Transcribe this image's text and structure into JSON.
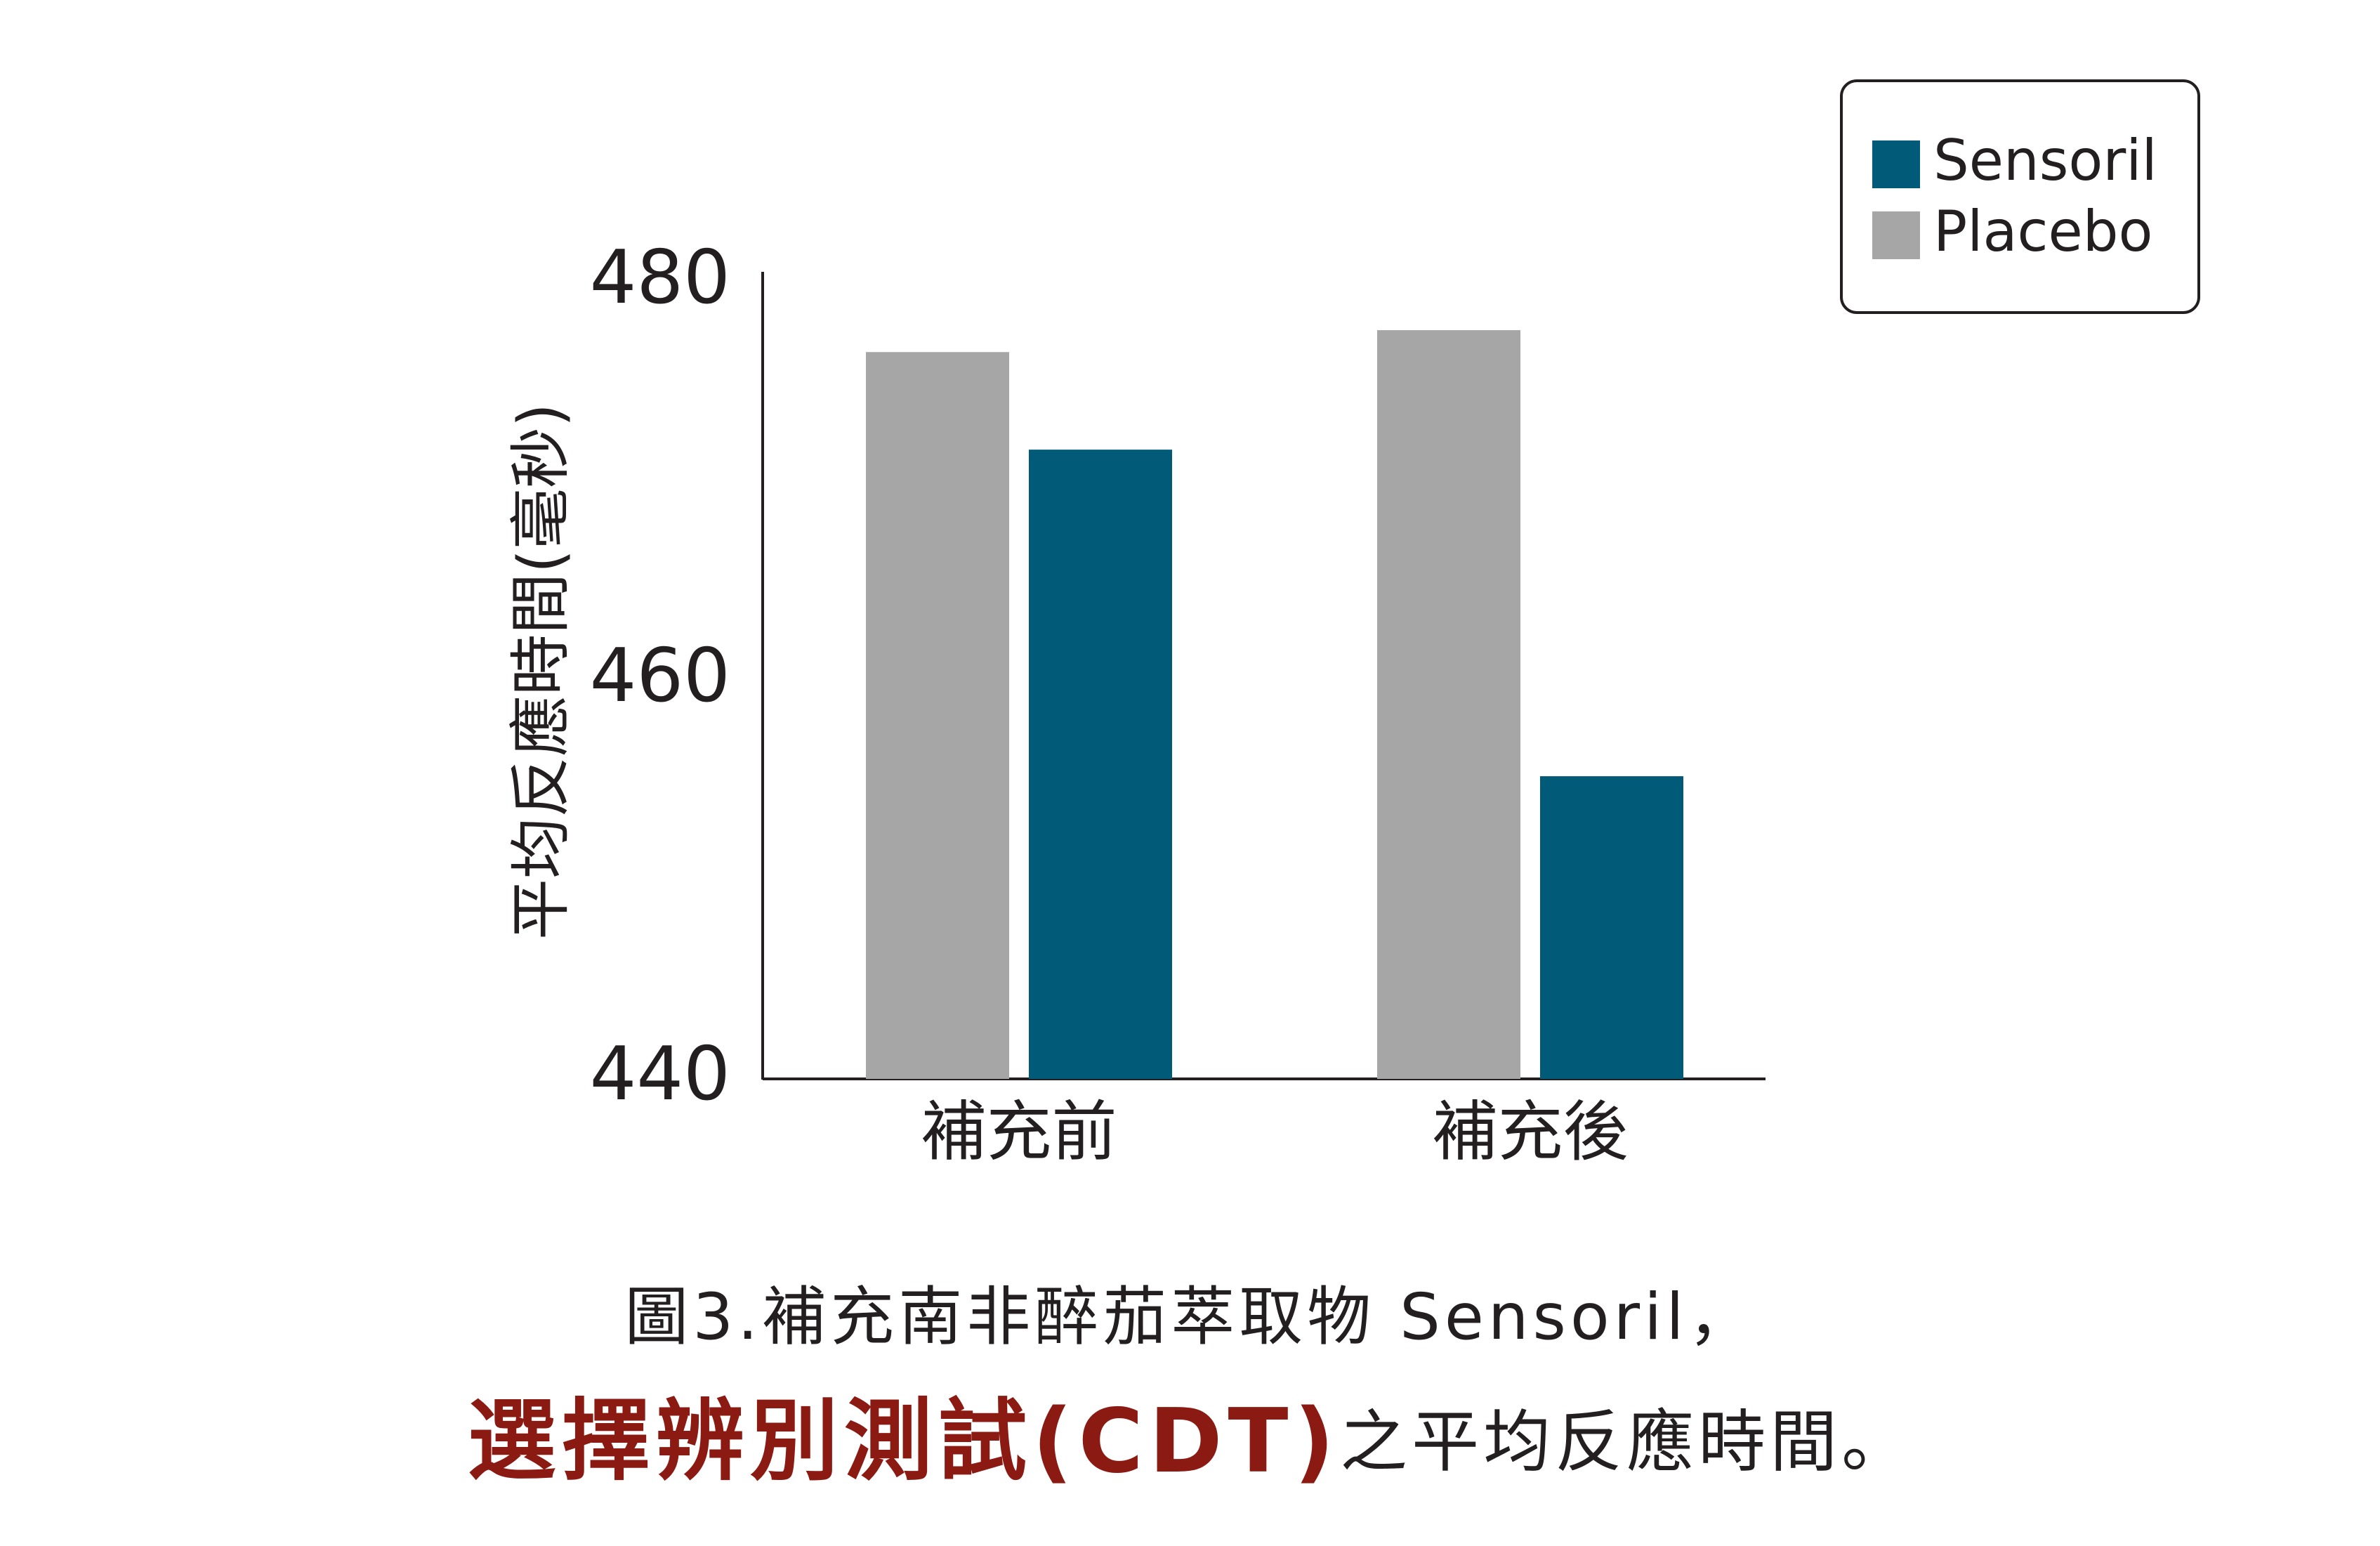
{
  "chart_data": {
    "type": "bar",
    "y_label": "平均反應時間(毫秒)",
    "categories": [
      "補充前",
      "補充後"
    ],
    "series": [
      {
        "name": "Sensoril",
        "color": "#005a78",
        "values": [
          471.6,
          455.2
        ]
      },
      {
        "name": "Placebo",
        "color": "#a6a6a6",
        "values": [
          476.5,
          477.6
        ]
      }
    ],
    "ylim": [
      440,
      480
    ],
    "yticks": [
      440,
      460,
      480
    ],
    "grid": false,
    "legend": "upper right",
    "caption": {
      "line1": "圖3.補充南非醉茄萃取物 Sensoril，",
      "line2_highlight": "選擇辨別測試(CDT)",
      "line2_rest": "之平均反應時間。"
    }
  }
}
